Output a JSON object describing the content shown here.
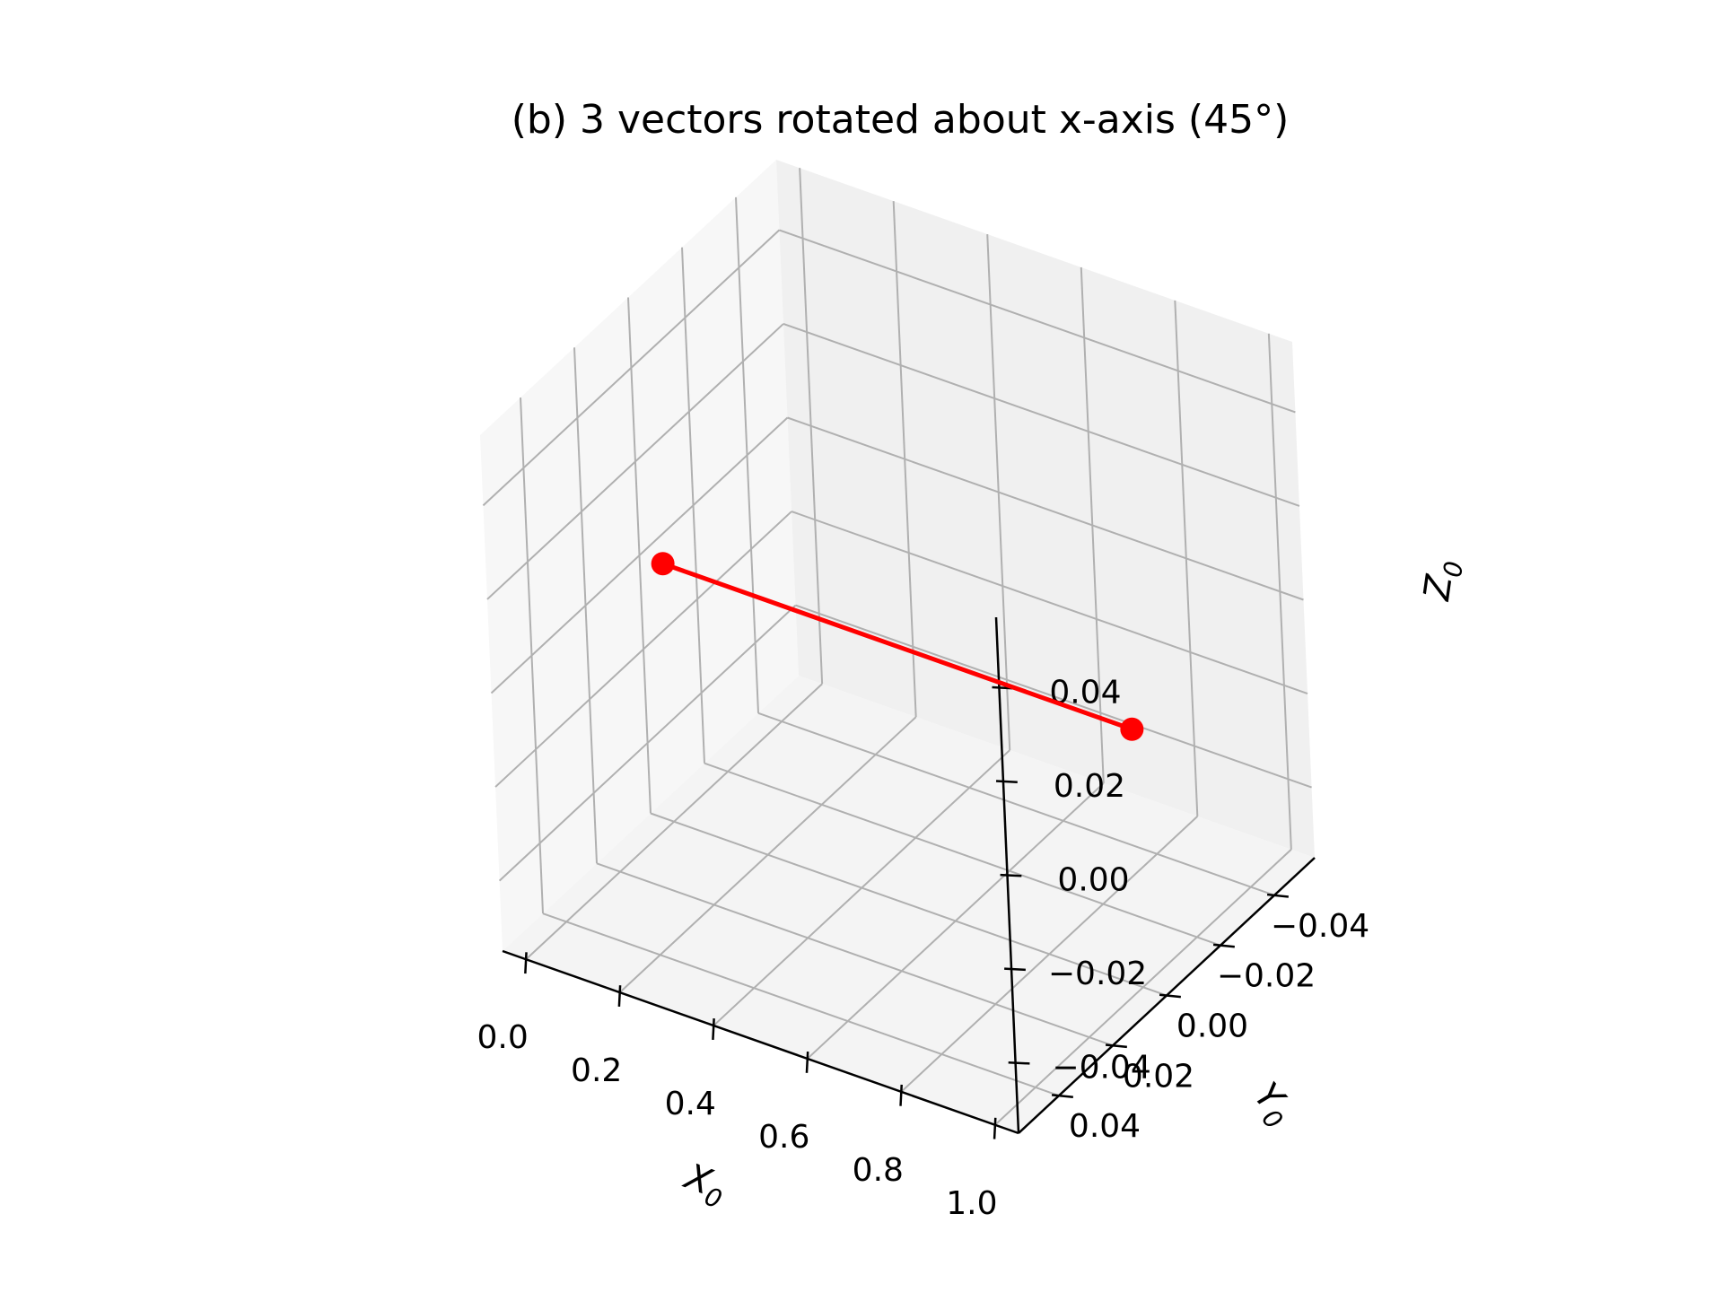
{
  "chart_data": {
    "type": "line3d",
    "title": "(b) 3 vectors rotated about x-axis (45°)",
    "xlabel": "X",
    "xlabel_sub": "0",
    "ylabel": "Y",
    "ylabel_sub": "0",
    "zlabel": "Z",
    "zlabel_sub": "0",
    "xlim": [
      -0.05,
      1.05
    ],
    "ylim": [
      -0.055,
      0.055
    ],
    "zlim": [
      -0.055,
      0.055
    ],
    "x_ticks": [
      0.0,
      0.2,
      0.4,
      0.6,
      0.8,
      1.0
    ],
    "x_tick_labels": [
      "0.0",
      "0.2",
      "0.4",
      "0.6",
      "0.8",
      "1.0"
    ],
    "y_ticks": [
      -0.04,
      -0.02,
      0.0,
      0.02,
      0.04
    ],
    "y_tick_labels": [
      "−0.04",
      "−0.02",
      "0.00",
      "0.02",
      "0.04"
    ],
    "z_ticks": [
      -0.04,
      -0.02,
      0.0,
      0.02,
      0.04
    ],
    "z_tick_labels": [
      "−0.04",
      "−0.02",
      "0.00",
      "0.02",
      "0.04"
    ],
    "grid": true,
    "series": [
      {
        "color": "#ff0000",
        "x": [
          0.0,
          1.0
        ],
        "y": [
          0.0,
          0.0
        ],
        "z": [
          0.0,
          0.0
        ],
        "marker": "circle"
      }
    ]
  }
}
